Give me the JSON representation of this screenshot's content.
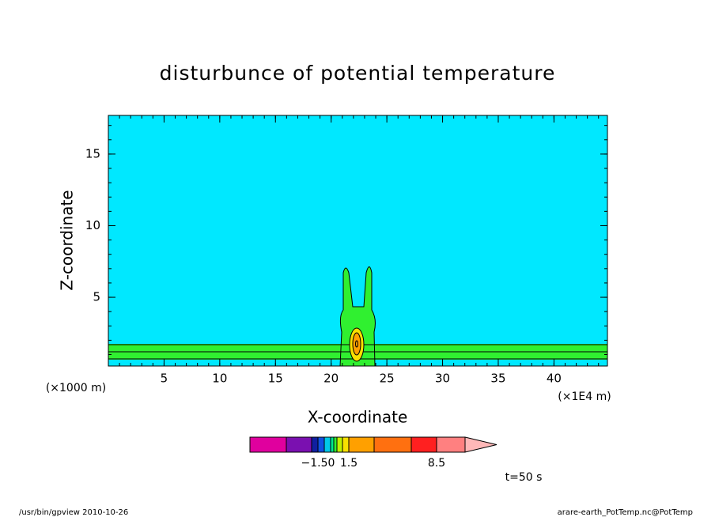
{
  "chart_data": {
    "type": "contour",
    "title": "disturbunce of potential temperature",
    "x_label": "X-coordinate",
    "y_label": "Z-coordinate",
    "x_unit": "(×1E4 m)",
    "y_unit": "(×1000 m)",
    "xlim": [
      0,
      44.8
    ],
    "ylim": [
      0.2,
      17.7
    ],
    "xticks": [
      5,
      10,
      15,
      20,
      25,
      30,
      35,
      40
    ],
    "yticks": [
      5,
      10,
      15
    ],
    "colorbar": {
      "colors": [
        "#e0009e",
        "#7a10b0",
        "#1020a0",
        "#1050e0",
        "#00c8e8",
        "#00e890",
        "#30f030",
        "#c0f000",
        "#f8e000",
        "#ffa000",
        "#ff7010",
        "#ff2020",
        "#ff8080",
        "#ffb8b8"
      ],
      "tick_labels": [
        null,
        null,
        "−1.50",
        null,
        null,
        null,
        null,
        null,
        "1.5",
        null,
        null,
        "8.5",
        null
      ]
    },
    "annotation": "t=50 s",
    "footer_left": "/usr/bin/gpview  2010-10-26",
    "footer_right": "arare-earth_PotTemp.nc@PotTemp"
  }
}
